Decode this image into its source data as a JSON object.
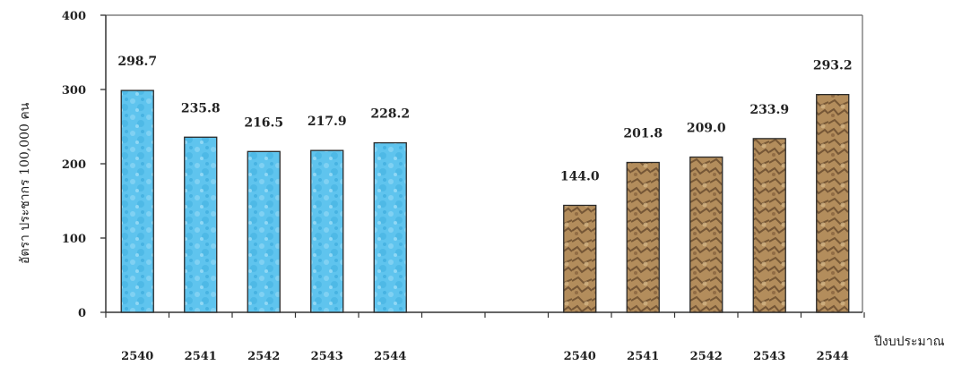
{
  "chart_data": {
    "type": "bar",
    "ylabel": "อัตรา ประชากร 100,000 คน",
    "xlabel": "ปีงบประมาณ",
    "ylim": [
      0,
      400
    ],
    "yticks": [
      "0",
      "100",
      "200",
      "300",
      "400"
    ],
    "grid": false,
    "legend": "none",
    "groups": [
      {
        "categories": [
          "2540",
          "2541",
          "2542",
          "2543",
          "2544"
        ],
        "values": [
          298.7,
          235.8,
          216.5,
          217.9,
          228.2
        ],
        "labels": [
          "298.7",
          "235.8",
          "216.5",
          "217.9",
          "228.2"
        ],
        "color": "#5cc2ec",
        "texture": "water"
      },
      {
        "categories": [
          "2540",
          "2541",
          "2542",
          "2543",
          "2544"
        ],
        "values": [
          144.0,
          201.8,
          209.0,
          233.9,
          293.2
        ],
        "labels": [
          "144.0",
          "201.8",
          "209.0",
          "233.9",
          "293.2"
        ],
        "color": "#b08a5a",
        "texture": "rock"
      }
    ]
  }
}
